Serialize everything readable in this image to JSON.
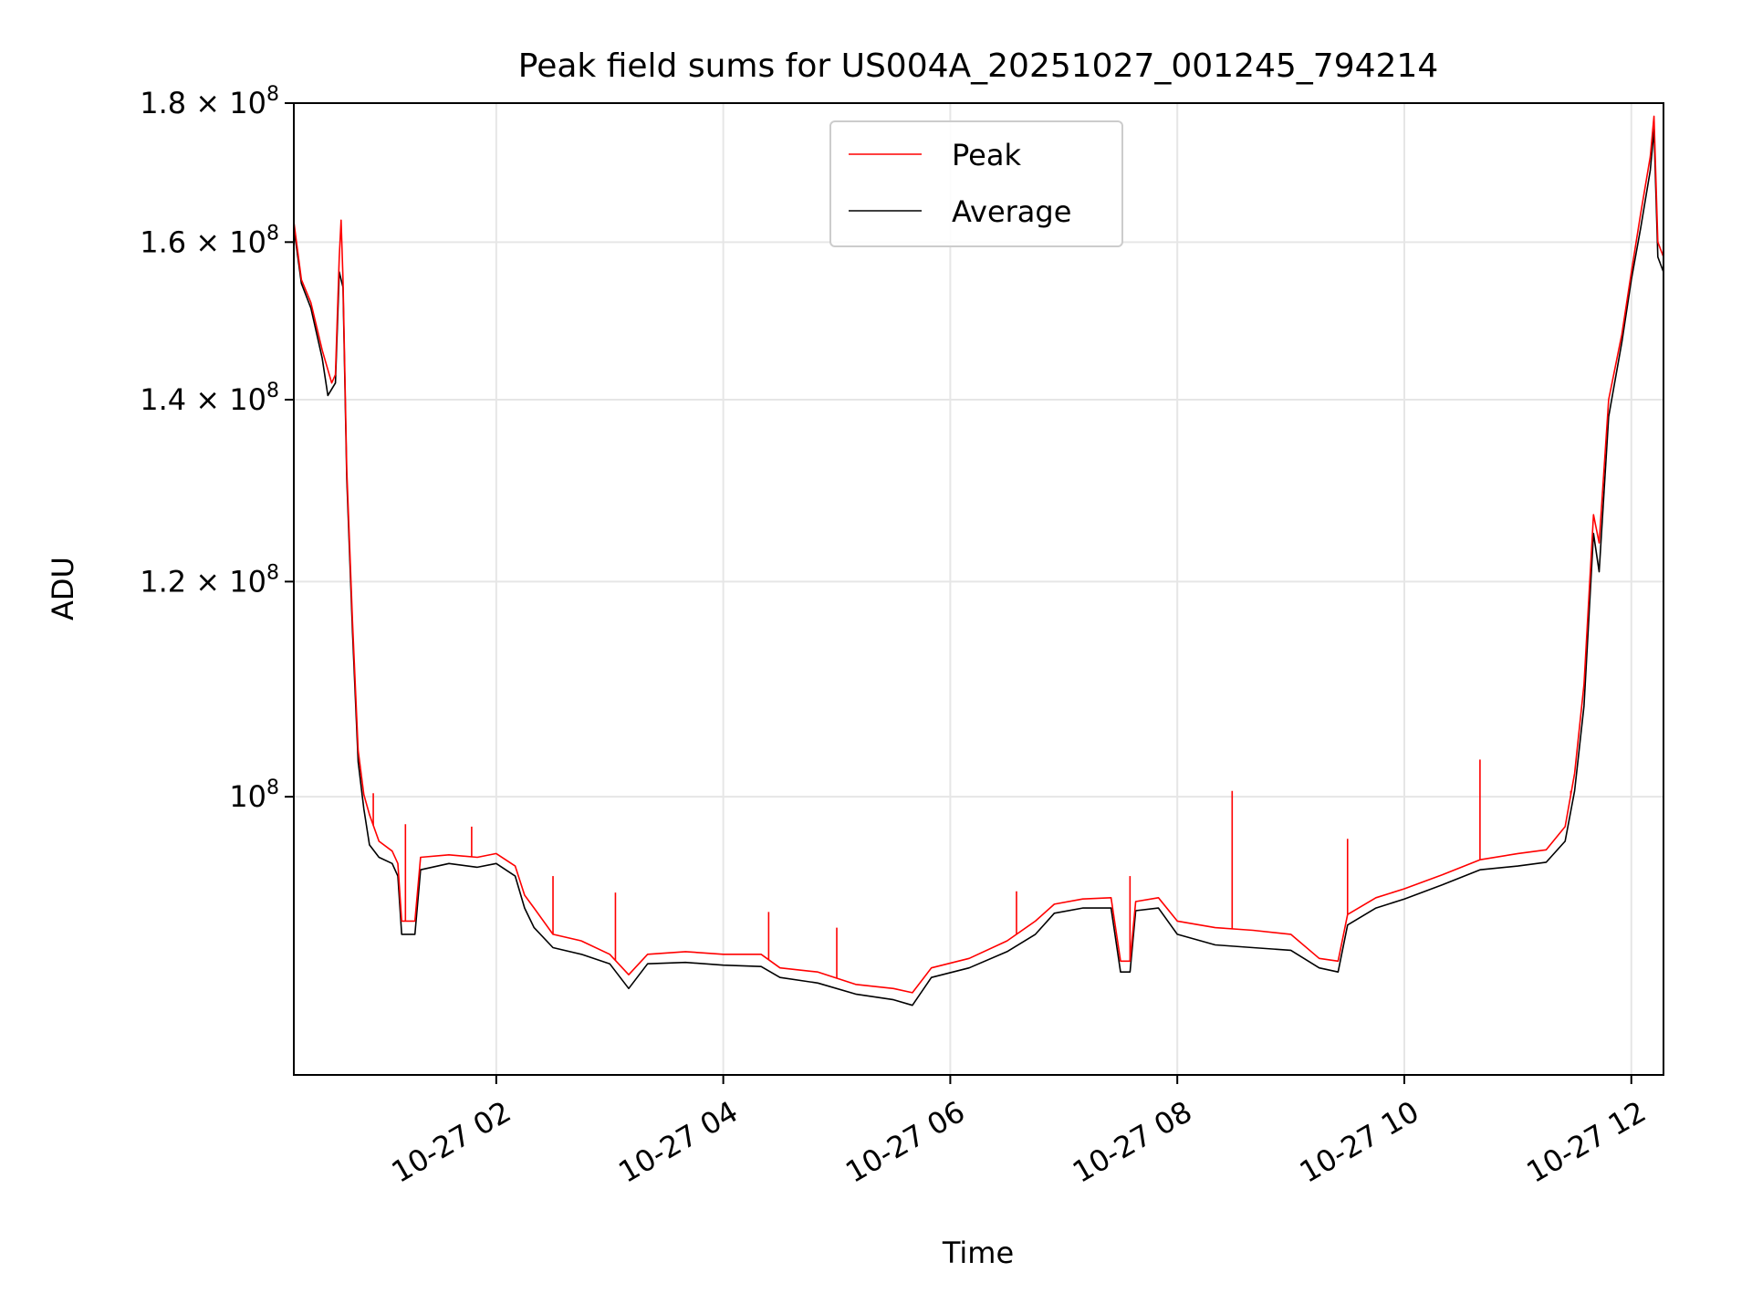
{
  "chart_data": {
    "type": "line",
    "title": "Peak field sums for US004A_20251027_001245_794214",
    "xlabel": "Time",
    "ylabel": "ADU",
    "x_ticks": [
      {
        "value": "2025-10-27T02:00",
        "label": "10-27 02"
      },
      {
        "value": "2025-10-27T04:00",
        "label": "10-27 04"
      },
      {
        "value": "2025-10-27T06:00",
        "label": "10-27 06"
      },
      {
        "value": "2025-10-27T08:00",
        "label": "10-27 08"
      },
      {
        "value": "2025-10-27T10:00",
        "label": "10-27 10"
      },
      {
        "value": "2025-10-27T12:00",
        "label": "10-27 12"
      }
    ],
    "y_ticks": [
      {
        "value": 100000000,
        "base": "10",
        "exp": "8"
      },
      {
        "value": 120000000,
        "base": "1.2 × 10",
        "exp": "8"
      },
      {
        "value": 140000000,
        "base": "1.4 × 10",
        "exp": "8"
      },
      {
        "value": 160000000,
        "base": "1.6 × 10",
        "exp": "8"
      },
      {
        "value": 180000000,
        "base": "1.8 × 10",
        "exp": "8"
      }
    ],
    "xlim": [
      "2025-10-27T00:13",
      "2025-10-27T12:17"
    ],
    "ylim": [
      79000000,
      180000000
    ],
    "yscale": "log",
    "grid": true,
    "legend": {
      "placement": "upper center"
    },
    "series": [
      {
        "name": "Peak",
        "color": "#ff0000",
        "points": [
          [
            "2025-10-27T00:13",
            162800000
          ],
          [
            "2025-10-27T00:17",
            155000000
          ],
          [
            "2025-10-27T00:22",
            152000000
          ],
          [
            "2025-10-27T00:28",
            146000000
          ],
          [
            "2025-10-27T00:33",
            142000000
          ],
          [
            "2025-10-27T00:35",
            143000000
          ],
          [
            "2025-10-27T00:37",
            158000000
          ],
          [
            "2025-10-27T00:38",
            163000000
          ],
          [
            "2025-10-27T00:39",
            155000000
          ],
          [
            "2025-10-27T00:41",
            132000000
          ],
          [
            "2025-10-27T00:44",
            116000000
          ],
          [
            "2025-10-27T00:47",
            104000000
          ],
          [
            "2025-10-27T00:50",
            100200000
          ],
          [
            "2025-10-27T00:53",
            98500000
          ],
          [
            "2025-10-27T00:58",
            96300000
          ],
          [
            "2025-10-27T01:05",
            95500000
          ],
          [
            "2025-10-27T01:08",
            94500000
          ],
          [
            "2025-10-27T01:10",
            90000000
          ],
          [
            "2025-10-27T01:17",
            90000000
          ],
          [
            "2025-10-27T01:20",
            95000000
          ],
          [
            "2025-10-27T01:35",
            95200000
          ],
          [
            "2025-10-27T01:50",
            95000000
          ],
          [
            "2025-10-27T02:00",
            95300000
          ],
          [
            "2025-10-27T02:10",
            94300000
          ],
          [
            "2025-10-27T02:15",
            92000000
          ],
          [
            "2025-10-27T02:20",
            91000000
          ],
          [
            "2025-10-27T02:30",
            89000000
          ],
          [
            "2025-10-27T02:45",
            88500000
          ],
          [
            "2025-10-27T03:00",
            87500000
          ],
          [
            "2025-10-27T03:10",
            86000000
          ],
          [
            "2025-10-27T03:20",
            87500000
          ],
          [
            "2025-10-27T03:40",
            87700000
          ],
          [
            "2025-10-27T04:00",
            87500000
          ],
          [
            "2025-10-27T04:20",
            87500000
          ],
          [
            "2025-10-27T04:30",
            86500000
          ],
          [
            "2025-10-27T04:50",
            86200000
          ],
          [
            "2025-10-27T05:10",
            85300000
          ],
          [
            "2025-10-27T05:30",
            85000000
          ],
          [
            "2025-10-27T05:40",
            84700000
          ],
          [
            "2025-10-27T05:50",
            86500000
          ],
          [
            "2025-10-27T06:10",
            87200000
          ],
          [
            "2025-10-27T06:30",
            88500000
          ],
          [
            "2025-10-27T06:45",
            90000000
          ],
          [
            "2025-10-27T06:55",
            91300000
          ],
          [
            "2025-10-27T07:10",
            91700000
          ],
          [
            "2025-10-27T07:25",
            91800000
          ],
          [
            "2025-10-27T07:30",
            87000000
          ],
          [
            "2025-10-27T07:35",
            87000000
          ],
          [
            "2025-10-27T07:38",
            91500000
          ],
          [
            "2025-10-27T07:50",
            91800000
          ],
          [
            "2025-10-27T08:00",
            90000000
          ],
          [
            "2025-10-27T08:20",
            89500000
          ],
          [
            "2025-10-27T08:40",
            89300000
          ],
          [
            "2025-10-27T09:00",
            89000000
          ],
          [
            "2025-10-27T09:15",
            87200000
          ],
          [
            "2025-10-27T09:25",
            87000000
          ],
          [
            "2025-10-27T09:30",
            90500000
          ],
          [
            "2025-10-27T09:45",
            91800000
          ],
          [
            "2025-10-27T10:00",
            92500000
          ],
          [
            "2025-10-27T10:20",
            93600000
          ],
          [
            "2025-10-27T10:40",
            94800000
          ],
          [
            "2025-10-27T11:00",
            95300000
          ],
          [
            "2025-10-27T11:15",
            95600000
          ],
          [
            "2025-10-27T11:25",
            97500000
          ],
          [
            "2025-10-27T11:30",
            102000000
          ],
          [
            "2025-10-27T11:35",
            110000000
          ],
          [
            "2025-10-27T11:40",
            127000000
          ],
          [
            "2025-10-27T11:43",
            124000000
          ],
          [
            "2025-10-27T11:48",
            140000000
          ],
          [
            "2025-10-27T11:55",
            148000000
          ],
          [
            "2025-10-27T12:00",
            156000000
          ],
          [
            "2025-10-27T12:05",
            164000000
          ],
          [
            "2025-10-27T12:10",
            172000000
          ],
          [
            "2025-10-27T12:12",
            178000000
          ],
          [
            "2025-10-27T12:14",
            160000000
          ],
          [
            "2025-10-27T12:17",
            158000000
          ]
        ],
        "spikes": [
          [
            "2025-10-27T00:55",
            100300000
          ],
          [
            "2025-10-27T01:12",
            97700000
          ],
          [
            "2025-10-27T01:47",
            97500000
          ],
          [
            "2025-10-27T02:30",
            93500000
          ],
          [
            "2025-10-27T03:03",
            92200000
          ],
          [
            "2025-10-27T04:24",
            90700000
          ],
          [
            "2025-10-27T05:00",
            89500000
          ],
          [
            "2025-10-27T06:35",
            92300000
          ],
          [
            "2025-10-27T07:35",
            93500000
          ],
          [
            "2025-10-27T08:29",
            100500000
          ],
          [
            "2025-10-27T09:30",
            96500000
          ],
          [
            "2025-10-27T10:40",
            103200000
          ],
          [
            "2025-10-27T11:28",
            100500000
          ]
        ]
      },
      {
        "name": "Average",
        "color": "#000000",
        "points": [
          [
            "2025-10-27T00:13",
            162000000
          ],
          [
            "2025-10-27T00:17",
            154500000
          ],
          [
            "2025-10-27T00:22",
            151300000
          ],
          [
            "2025-10-27T00:28",
            145000000
          ],
          [
            "2025-10-27T00:31",
            140500000
          ],
          [
            "2025-10-27T00:35",
            142000000
          ],
          [
            "2025-10-27T00:37",
            156000000
          ],
          [
            "2025-10-27T00:39",
            154000000
          ],
          [
            "2025-10-27T00:41",
            131000000
          ],
          [
            "2025-10-27T00:44",
            115000000
          ],
          [
            "2025-10-27T00:47",
            103000000
          ],
          [
            "2025-10-27T00:50",
            99000000
          ],
          [
            "2025-10-27T00:53",
            96000000
          ],
          [
            "2025-10-27T00:58",
            95000000
          ],
          [
            "2025-10-27T01:05",
            94500000
          ],
          [
            "2025-10-27T01:08",
            93500000
          ],
          [
            "2025-10-27T01:10",
            89000000
          ],
          [
            "2025-10-27T01:17",
            89000000
          ],
          [
            "2025-10-27T01:20",
            94000000
          ],
          [
            "2025-10-27T01:35",
            94500000
          ],
          [
            "2025-10-27T01:50",
            94200000
          ],
          [
            "2025-10-27T02:00",
            94500000
          ],
          [
            "2025-10-27T02:10",
            93500000
          ],
          [
            "2025-10-27T02:15",
            91000000
          ],
          [
            "2025-10-27T02:20",
            89500000
          ],
          [
            "2025-10-27T02:30",
            88000000
          ],
          [
            "2025-10-27T02:45",
            87500000
          ],
          [
            "2025-10-27T03:00",
            86800000
          ],
          [
            "2025-10-27T03:10",
            85000000
          ],
          [
            "2025-10-27T03:20",
            86800000
          ],
          [
            "2025-10-27T03:40",
            86900000
          ],
          [
            "2025-10-27T04:00",
            86700000
          ],
          [
            "2025-10-27T04:20",
            86600000
          ],
          [
            "2025-10-27T04:30",
            85800000
          ],
          [
            "2025-10-27T04:50",
            85400000
          ],
          [
            "2025-10-27T05:10",
            84600000
          ],
          [
            "2025-10-27T05:30",
            84200000
          ],
          [
            "2025-10-27T05:40",
            83800000
          ],
          [
            "2025-10-27T05:50",
            85800000
          ],
          [
            "2025-10-27T06:10",
            86500000
          ],
          [
            "2025-10-27T06:30",
            87700000
          ],
          [
            "2025-10-27T06:45",
            89000000
          ],
          [
            "2025-10-27T06:55",
            90600000
          ],
          [
            "2025-10-27T07:10",
            91000000
          ],
          [
            "2025-10-27T07:25",
            91000000
          ],
          [
            "2025-10-27T07:30",
            86200000
          ],
          [
            "2025-10-27T07:35",
            86200000
          ],
          [
            "2025-10-27T07:38",
            90800000
          ],
          [
            "2025-10-27T07:50",
            91000000
          ],
          [
            "2025-10-27T08:00",
            89000000
          ],
          [
            "2025-10-27T08:20",
            88200000
          ],
          [
            "2025-10-27T08:40",
            88000000
          ],
          [
            "2025-10-27T09:00",
            87800000
          ],
          [
            "2025-10-27T09:15",
            86500000
          ],
          [
            "2025-10-27T09:25",
            86200000
          ],
          [
            "2025-10-27T09:30",
            89700000
          ],
          [
            "2025-10-27T09:45",
            91000000
          ],
          [
            "2025-10-27T10:00",
            91700000
          ],
          [
            "2025-10-27T10:20",
            92800000
          ],
          [
            "2025-10-27T10:40",
            94000000
          ],
          [
            "2025-10-27T11:00",
            94300000
          ],
          [
            "2025-10-27T11:15",
            94600000
          ],
          [
            "2025-10-27T11:25",
            96300000
          ],
          [
            "2025-10-27T11:30",
            100500000
          ],
          [
            "2025-10-27T11:35",
            108000000
          ],
          [
            "2025-10-27T11:40",
            125000000
          ],
          [
            "2025-10-27T11:43",
            121000000
          ],
          [
            "2025-10-27T11:48",
            138000000
          ],
          [
            "2025-10-27T11:55",
            147000000
          ],
          [
            "2025-10-27T12:00",
            155000000
          ],
          [
            "2025-10-27T12:05",
            162000000
          ],
          [
            "2025-10-27T12:10",
            170000000
          ],
          [
            "2025-10-27T12:12",
            176000000
          ],
          [
            "2025-10-27T12:14",
            158000000
          ],
          [
            "2025-10-27T12:17",
            156000000
          ]
        ]
      }
    ]
  }
}
